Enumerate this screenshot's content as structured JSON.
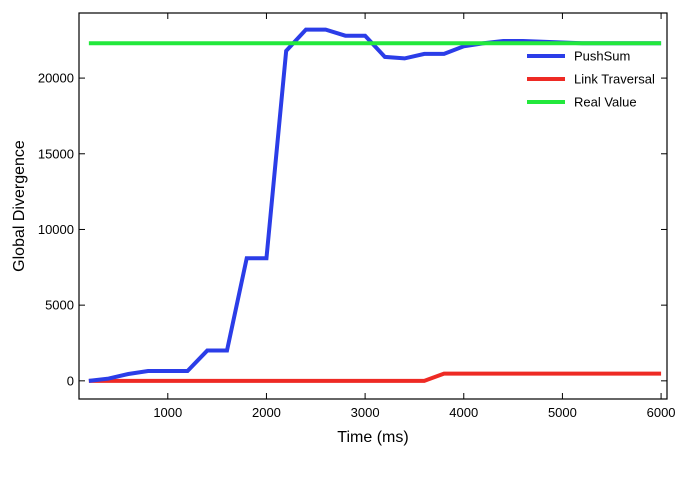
{
  "chart_data": {
    "type": "line",
    "title": "",
    "xlabel": "Time (ms)",
    "ylabel": "Global Divergence",
    "xlim": [
      100,
      6060
    ],
    "ylim": [
      -1200,
      24300
    ],
    "x_ticks": [
      1000,
      2000,
      3000,
      4000,
      5000,
      6000
    ],
    "y_ticks": [
      0,
      5000,
      10000,
      15000,
      20000
    ],
    "grid": false,
    "legend_position": "top-right",
    "series": [
      {
        "name": "PushSum",
        "color": "#2b3de8",
        "x": [
          200,
          400,
          600,
          800,
          1000,
          1200,
          1400,
          1600,
          1800,
          2000,
          2200,
          2400,
          2600,
          2800,
          3000,
          3200,
          3400,
          3600,
          3800,
          4000,
          4200,
          4400,
          4600,
          4800,
          5000,
          5200,
          5400,
          5600,
          5800,
          6000
        ],
        "y": [
          0,
          150,
          450,
          650,
          650,
          650,
          2000,
          2000,
          8100,
          8100,
          21800,
          23200,
          23200,
          22800,
          22800,
          21400,
          21300,
          21600,
          21600,
          22100,
          22300,
          22450,
          22450,
          22400,
          22350,
          22300,
          22300,
          22300,
          22300,
          22300
        ]
      },
      {
        "name": "Link Traversal",
        "color": "#ee2a24",
        "x": [
          200,
          400,
          600,
          800,
          1000,
          1200,
          1400,
          1600,
          1800,
          2000,
          2200,
          2400,
          2600,
          2800,
          3000,
          3200,
          3400,
          3600,
          3800,
          4000,
          4200,
          4400,
          4600,
          4800,
          5000,
          5200,
          5400,
          5600,
          5800,
          6000
        ],
        "y": [
          0,
          0,
          0,
          0,
          0,
          0,
          0,
          0,
          0,
          0,
          0,
          0,
          0,
          0,
          0,
          0,
          0,
          0,
          480,
          480,
          480,
          480,
          480,
          480,
          480,
          480,
          480,
          480,
          480,
          480
        ]
      },
      {
        "name": "Real Value",
        "color": "#22e83c",
        "x": [
          200,
          6000
        ],
        "y": [
          22300,
          22300
        ]
      }
    ]
  }
}
